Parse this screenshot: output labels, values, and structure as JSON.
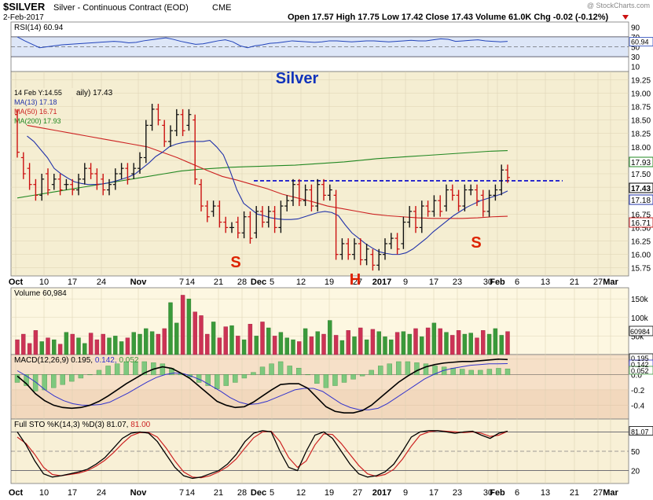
{
  "header": {
    "symbol": "$SILVER",
    "name": "Silver - Continuous Contract (EOD)",
    "exchange": "CME",
    "date": "2-Feb-2017",
    "watermark": "@ StockCharts.com",
    "ohlc": "Open 17.57  High 17.75  Low 17.42  Close 17.43  Volume 61.0K  Chg -0.02 (-0.12%)"
  },
  "rsi": {
    "label": "RSI(14) 60.94",
    "value_tag": "60.94",
    "value": 60.94,
    "ticks": [
      "90",
      "70",
      "50",
      "30",
      "10"
    ],
    "tick_values": [
      90,
      70,
      50,
      30,
      10
    ],
    "color": "#2244bb"
  },
  "price_panel": {
    "overlay_title": "Silver",
    "hover_label": "14 Feb Y:14.55",
    "daily_label": "aily) 17.43",
    "ma13_label": "MA(13) 17.18",
    "ma50_label": "MA(50) 16.71",
    "ma200_label": "MA(200) 17.93",
    "ticks": [
      "19.25",
      "19.00",
      "18.75",
      "18.50",
      "18.25",
      "18.00",
      "17.75",
      "17.50",
      "17.25",
      "17.00",
      "16.75",
      "16.50",
      "16.25",
      "16.00",
      "15.75"
    ],
    "tick_values": [
      19.25,
      19.0,
      18.75,
      18.5,
      18.25,
      18.0,
      17.75,
      17.5,
      17.25,
      17.0,
      16.75,
      16.5,
      16.25,
      16.0,
      15.75
    ],
    "tags": {
      "ma200": "17.93",
      "close": "17.43",
      "ma13": "17.18",
      "ma50": "16.71"
    },
    "pattern_labels": {
      "left_shoulder": "S",
      "head": "H",
      "right_shoulder": "S"
    },
    "neckline_level": 17.37,
    "colors": {
      "up": "#111111",
      "down": "#cc1111",
      "ma13": "#2233aa",
      "ma50": "#cc2222",
      "ma200": "#228822",
      "neckline": "#0000cc",
      "pattern": "#dd2200",
      "title": "#1133bb"
    }
  },
  "xaxis": {
    "labels": [
      "Oct",
      "10",
      "17",
      "24",
      "Nov",
      "7",
      "14",
      "21",
      "28",
      "Dec",
      "5",
      "12",
      "19",
      "27",
      "2017",
      "9",
      "17",
      "23",
      "30",
      "Feb",
      "6",
      "13",
      "21",
      "27",
      "Mar"
    ],
    "bold": [
      "Oct",
      "Nov",
      "Dec",
      "2017",
      "Feb",
      "Mar"
    ]
  },
  "volume": {
    "label": "Volume 60,984",
    "value_tag": "60984",
    "ticks": [
      "150k",
      "100k",
      "50k"
    ],
    "tick_values": [
      150,
      100,
      50
    ],
    "unit": "thousands"
  },
  "macd": {
    "label": "MACD(12,26,9) 0.195, 0.142, 0.052",
    "title": "MACD(12,26,9)",
    "v1": "0.195",
    "v2": "0.142",
    "v3": "0.052",
    "ticks": [
      "0.2",
      "0.0",
      "-0.2",
      "-0.4"
    ],
    "tick_values": [
      0.2,
      0.0,
      -0.2,
      -0.4
    ],
    "tags": {
      "macd": "0.195",
      "signal": "0.142",
      "hist": "0.052"
    }
  },
  "sto": {
    "label": "Full STO %K(14,3) %D(3) 81.07, 81.00",
    "title": "Full STO %K(14,3) %D(3)",
    "k": "81.07",
    "d": "81.00",
    "value_tag": "81.07",
    "ticks": [
      "80",
      "50",
      "20"
    ],
    "tick_values": [
      80,
      50,
      20
    ]
  },
  "chart_data": {
    "type": "candlestick",
    "title": "$SILVER Silver - Continuous Contract (EOD)",
    "date_range": [
      "2016-10-03",
      "2017-02-02"
    ],
    "ylim": [
      15.6,
      19.4
    ],
    "bars": [
      [
        18.6,
        17.9
      ],
      [
        17.8,
        17.5
      ],
      [
        17.6,
        17.3
      ],
      [
        17.3,
        17.1
      ],
      [
        17.1,
        17.4
      ],
      [
        17.5,
        17.2
      ],
      [
        17.3,
        17.4
      ],
      [
        17.4,
        17.2
      ],
      [
        17.3,
        17.3
      ],
      [
        17.3,
        17.2
      ],
      [
        17.2,
        17.4
      ],
      [
        17.4,
        17.6
      ],
      [
        17.6,
        17.5
      ],
      [
        17.5,
        17.3
      ],
      [
        17.4,
        17.2
      ],
      [
        17.2,
        17.3
      ],
      [
        17.3,
        17.5
      ],
      [
        17.5,
        17.6
      ],
      [
        17.6,
        17.4
      ],
      [
        17.5,
        17.6
      ],
      [
        17.6,
        17.8
      ],
      [
        17.8,
        18.4
      ],
      [
        18.4,
        18.7
      ],
      [
        18.7,
        18.5
      ],
      [
        18.4,
        18.1
      ],
      [
        18.1,
        18.3
      ],
      [
        18.3,
        18.6
      ],
      [
        18.6,
        18.3
      ],
      [
        18.4,
        18.6
      ],
      [
        18.5,
        17.4
      ],
      [
        17.3,
        16.9
      ],
      [
        16.9,
        16.7
      ],
      [
        16.8,
        16.9
      ],
      [
        16.9,
        16.6
      ],
      [
        16.6,
        16.5
      ],
      [
        16.5,
        16.5
      ],
      [
        16.6,
        16.4
      ],
      [
        16.4,
        16.7
      ],
      [
        16.7,
        16.3
      ],
      [
        16.4,
        16.8
      ],
      [
        16.8,
        16.6
      ],
      [
        16.6,
        16.8
      ],
      [
        16.8,
        16.5
      ],
      [
        16.5,
        16.9
      ],
      [
        16.9,
        17.0
      ],
      [
        17.0,
        17.3
      ],
      [
        17.3,
        17.0
      ],
      [
        17.0,
        17.2
      ],
      [
        17.2,
        16.9
      ],
      [
        16.9,
        17.3
      ],
      [
        17.3,
        17.1
      ],
      [
        17.1,
        17.2
      ],
      [
        17.1,
        16.0
      ],
      [
        16.0,
        16.2
      ],
      [
        16.2,
        16.0
      ],
      [
        16.0,
        16.2
      ],
      [
        16.2,
        15.9
      ],
      [
        15.9,
        16.1
      ],
      [
        16.0,
        15.8
      ],
      [
        15.8,
        16.0
      ],
      [
        16.0,
        16.2
      ],
      [
        16.2,
        16.3
      ],
      [
        16.3,
        16.1
      ],
      [
        16.2,
        16.6
      ],
      [
        16.6,
        16.8
      ],
      [
        16.8,
        16.5
      ],
      [
        16.5,
        16.9
      ],
      [
        16.9,
        16.8
      ],
      [
        16.8,
        17.0
      ],
      [
        17.0,
        16.8
      ],
      [
        16.9,
        17.2
      ],
      [
        17.2,
        17.1
      ],
      [
        17.1,
        16.9
      ],
      [
        16.9,
        17.2
      ],
      [
        17.2,
        17.2
      ],
      [
        17.2,
        17.0
      ],
      [
        17.1,
        16.8
      ],
      [
        16.8,
        17.1
      ],
      [
        17.1,
        17.2
      ],
      [
        17.2,
        17.57
      ],
      [
        17.57,
        17.43
      ]
    ],
    "ma13": [
      18.2,
      18.1,
      17.95,
      17.8,
      17.6,
      17.5,
      17.42,
      17.35,
      17.32,
      17.3,
      17.3,
      17.31,
      17.33,
      17.36,
      17.4,
      17.44,
      17.5,
      17.6,
      17.7,
      17.82,
      17.9,
      18.0,
      18.05,
      18.08,
      18.1,
      18.1,
      18.1,
      18.12,
      18.0,
      17.85,
      17.55,
      17.2,
      16.95,
      16.85,
      16.75,
      16.72,
      16.68,
      16.66,
      16.65,
      16.65,
      16.66,
      16.7,
      16.74,
      16.78,
      16.8,
      16.78,
      16.72,
      16.55,
      16.4,
      16.3,
      16.2,
      16.12,
      16.05,
      16.02,
      16.0,
      16.0,
      16.03,
      16.1,
      16.2,
      16.3,
      16.42,
      16.52,
      16.62,
      16.72,
      16.8,
      16.88,
      16.94,
      17.0,
      17.04,
      17.08,
      17.12,
      17.18
    ],
    "ma50": [
      18.4,
      18.35,
      18.3,
      18.25,
      18.2,
      18.15,
      18.1,
      18.05,
      18.0,
      17.9,
      17.8,
      17.68,
      17.56,
      17.45,
      17.38,
      17.3,
      17.22,
      17.12,
      17.05,
      16.98,
      16.9,
      16.85,
      16.8,
      16.75,
      16.72,
      16.7,
      16.68,
      16.67,
      16.67,
      16.67,
      16.68,
      16.7,
      16.71
    ],
    "ma200": [
      17.05,
      17.1,
      17.15,
      17.2,
      17.25,
      17.3,
      17.35,
      17.4,
      17.45,
      17.5,
      17.55,
      17.58,
      17.6,
      17.62,
      17.63,
      17.64,
      17.65,
      17.66,
      17.68,
      17.7,
      17.72,
      17.75,
      17.78,
      17.8,
      17.82,
      17.84,
      17.86,
      17.88,
      17.9,
      17.92,
      17.93
    ],
    "volume": [
      40,
      55,
      30,
      65,
      35,
      45,
      40,
      28,
      60,
      55,
      45,
      30,
      58,
      40,
      55,
      45,
      50,
      35,
      45,
      60,
      55,
      70,
      62,
      55,
      70,
      140,
      85,
      160,
      150,
      115,
      105,
      55,
      88,
      45,
      75,
      78,
      50,
      40,
      82,
      50,
      88,
      72,
      50,
      60,
      45,
      40,
      35,
      70,
      48,
      62,
      55,
      92,
      52,
      38,
      65,
      48,
      72,
      40,
      68,
      62,
      48,
      40,
      60,
      62,
      55,
      70,
      48,
      72,
      85,
      70,
      60,
      52,
      65,
      55,
      58,
      45,
      65,
      55,
      70,
      52,
      62
    ],
    "rsi": [
      70,
      62,
      55,
      48,
      50,
      52,
      54,
      55,
      56,
      57,
      58,
      59,
      60,
      61,
      60,
      58,
      59,
      62,
      64,
      66,
      68,
      65,
      61,
      58,
      55,
      56,
      59,
      62,
      64,
      60,
      52,
      48,
      52,
      54,
      57,
      58,
      60,
      62,
      61,
      60,
      59,
      60,
      62,
      62,
      61,
      60,
      61,
      62,
      62,
      61,
      60,
      61,
      62,
      63,
      62,
      62,
      64,
      66,
      65,
      61,
      62,
      63,
      64,
      62,
      61,
      60,
      60.94
    ],
    "macd": [
      -0.02,
      -0.12,
      -0.25,
      -0.34,
      -0.4,
      -0.43,
      -0.44,
      -0.43,
      -0.4,
      -0.35,
      -0.28,
      -0.2,
      -0.12,
      -0.05,
      0.02,
      0.07,
      0.1,
      0.08,
      0.02,
      -0.05,
      -0.15,
      -0.25,
      -0.35,
      -0.4,
      -0.43,
      -0.42,
      -0.36,
      -0.28,
      -0.2,
      -0.13,
      -0.12,
      -0.12,
      -0.18,
      -0.3,
      -0.42,
      -0.48,
      -0.5,
      -0.5,
      -0.47,
      -0.4,
      -0.3,
      -0.2,
      -0.1,
      -0.02,
      0.05,
      0.1,
      0.13,
      0.15,
      0.16,
      0.17,
      0.17,
      0.18,
      0.19,
      0.2,
      0.195
    ],
    "macd_signal": [
      0.05,
      -0.02,
      -0.1,
      -0.2,
      -0.28,
      -0.34,
      -0.38,
      -0.4,
      -0.4,
      -0.39,
      -0.36,
      -0.3,
      -0.24,
      -0.17,
      -0.1,
      -0.04,
      0.0,
      0.02,
      0.01,
      -0.03,
      -0.08,
      -0.15,
      -0.22,
      -0.3,
      -0.36,
      -0.39,
      -0.38,
      -0.35,
      -0.3,
      -0.25,
      -0.2,
      -0.18,
      -0.18,
      -0.22,
      -0.3,
      -0.38,
      -0.43,
      -0.46,
      -0.46,
      -0.44,
      -0.38,
      -0.3,
      -0.22,
      -0.14,
      -0.06,
      0.0,
      0.05,
      0.08,
      0.1,
      0.12,
      0.13,
      0.14,
      0.14,
      0.142
    ],
    "sto_k": [
      80,
      60,
      35,
      15,
      10,
      12,
      15,
      18,
      22,
      30,
      40,
      55,
      70,
      78,
      80,
      78,
      65,
      45,
      25,
      12,
      8,
      10,
      15,
      20,
      30,
      45,
      65,
      78,
      82,
      80,
      50,
      25,
      20,
      50,
      75,
      80,
      70,
      50,
      30,
      15,
      10,
      12,
      18,
      30,
      50,
      72,
      80,
      82,
      82,
      80,
      78,
      80,
      81,
      75,
      70,
      78,
      81.07
    ],
    "sto_d": [
      72,
      62,
      45,
      25,
      14,
      12,
      14,
      16,
      20,
      27,
      36,
      48,
      62,
      74,
      79,
      79,
      72,
      55,
      35,
      18,
      10,
      9,
      12,
      18,
      26,
      38,
      55,
      71,
      80,
      81,
      65,
      40,
      25,
      35,
      60,
      77,
      76,
      62,
      45,
      28,
      15,
      11,
      14,
      22,
      38,
      58,
      75,
      80,
      82,
      81,
      80,
      79,
      80,
      78,
      73,
      75,
      81.0
    ]
  }
}
